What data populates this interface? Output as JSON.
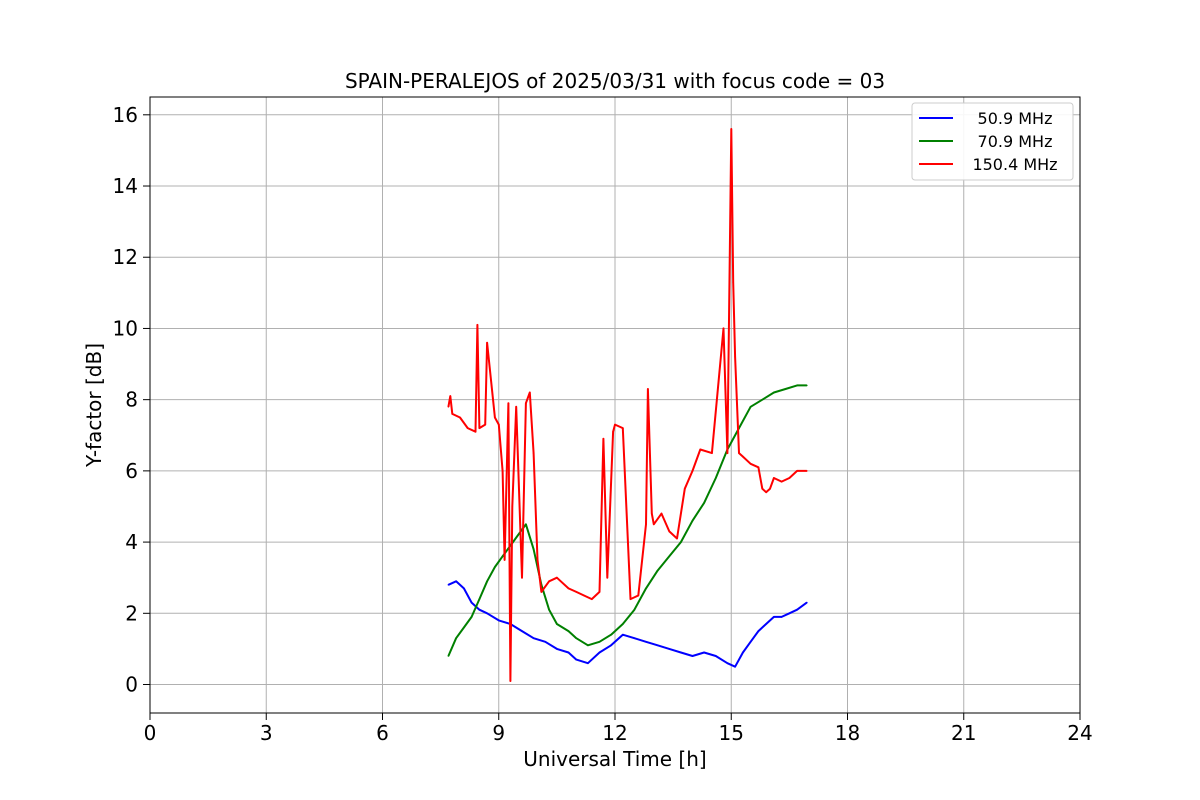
{
  "chart_data": {
    "type": "line",
    "title": "SPAIN-PERALEJOS of 2025/03/31 with focus code = 03",
    "xlabel": "Universal Time [h]",
    "ylabel": "Y-factor [dB]",
    "xlim": [
      0,
      24
    ],
    "ylim": [
      -0.8,
      16.5
    ],
    "xticks": [
      0,
      3,
      6,
      9,
      12,
      15,
      18,
      21,
      24
    ],
    "yticks": [
      0,
      2,
      4,
      6,
      8,
      10,
      12,
      14,
      16
    ],
    "grid": true,
    "legend_position": "top-right",
    "series": [
      {
        "name": "50.9 MHz",
        "color": "#0000ff",
        "x": [
          7.7,
          7.9,
          8.1,
          8.3,
          8.5,
          8.7,
          9.0,
          9.3,
          9.6,
          9.9,
          10.2,
          10.5,
          10.8,
          11.0,
          11.3,
          11.6,
          11.9,
          12.2,
          12.5,
          12.8,
          13.1,
          13.4,
          13.7,
          14.0,
          14.3,
          14.6,
          14.9,
          15.1,
          15.3,
          15.5,
          15.7,
          15.9,
          16.1,
          16.3,
          16.5,
          16.7,
          16.95
        ],
        "y": [
          2.8,
          2.9,
          2.7,
          2.3,
          2.1,
          2.0,
          1.8,
          1.7,
          1.5,
          1.3,
          1.2,
          1.0,
          0.9,
          0.7,
          0.6,
          0.9,
          1.1,
          1.4,
          1.3,
          1.2,
          1.1,
          1.0,
          0.9,
          0.8,
          0.9,
          0.8,
          0.6,
          0.5,
          0.9,
          1.2,
          1.5,
          1.7,
          1.9,
          1.9,
          2.0,
          2.1,
          2.3
        ]
      },
      {
        "name": "70.9 MHz",
        "color": "#008000",
        "x": [
          7.7,
          7.9,
          8.1,
          8.3,
          8.5,
          8.7,
          8.9,
          9.1,
          9.3,
          9.5,
          9.7,
          9.9,
          10.1,
          10.3,
          10.5,
          10.8,
          11.0,
          11.3,
          11.6,
          11.9,
          12.2,
          12.5,
          12.8,
          13.1,
          13.4,
          13.7,
          14.0,
          14.3,
          14.6,
          14.9,
          15.2,
          15.5,
          15.8,
          16.1,
          16.4,
          16.7,
          16.95
        ],
        "y": [
          0.8,
          1.3,
          1.6,
          1.9,
          2.4,
          2.9,
          3.3,
          3.6,
          3.9,
          4.2,
          4.5,
          3.8,
          2.8,
          2.1,
          1.7,
          1.5,
          1.3,
          1.1,
          1.2,
          1.4,
          1.7,
          2.1,
          2.7,
          3.2,
          3.6,
          4.0,
          4.6,
          5.1,
          5.8,
          6.6,
          7.2,
          7.8,
          8.0,
          8.2,
          8.3,
          8.4,
          8.4
        ]
      },
      {
        "name": "150.4 MHz",
        "color": "#ff0000",
        "x": [
          7.7,
          7.75,
          7.8,
          8.0,
          8.2,
          8.4,
          8.45,
          8.5,
          8.65,
          8.7,
          8.9,
          9.0,
          9.1,
          9.15,
          9.25,
          9.3,
          9.35,
          9.45,
          9.6,
          9.7,
          9.8,
          9.9,
          10.0,
          10.1,
          10.3,
          10.5,
          10.6,
          10.8,
          11.0,
          11.2,
          11.4,
          11.6,
          11.7,
          11.8,
          11.95,
          12.0,
          12.2,
          12.4,
          12.6,
          12.8,
          12.85,
          12.95,
          13.0,
          13.2,
          13.4,
          13.6,
          13.8,
          14.0,
          14.2,
          14.5,
          14.8,
          14.9,
          15.0,
          15.05,
          15.1,
          15.2,
          15.3,
          15.5,
          15.7,
          15.8,
          15.9,
          16.0,
          16.1,
          16.3,
          16.5,
          16.7,
          16.95
        ],
        "y": [
          7.8,
          8.1,
          7.6,
          7.5,
          7.2,
          7.1,
          10.1,
          7.2,
          7.3,
          9.6,
          7.5,
          7.3,
          6.0,
          3.5,
          7.9,
          0.1,
          5.0,
          7.8,
          3.0,
          7.9,
          8.2,
          6.5,
          3.5,
          2.6,
          2.9,
          3.0,
          2.9,
          2.7,
          2.6,
          2.5,
          2.4,
          2.6,
          6.9,
          3.0,
          7.1,
          7.3,
          7.2,
          2.4,
          2.5,
          4.5,
          8.3,
          4.8,
          4.5,
          4.8,
          4.3,
          4.1,
          5.5,
          6.0,
          6.6,
          6.5,
          10.0,
          6.5,
          15.6,
          11.3,
          9.2,
          6.5,
          6.4,
          6.2,
          6.1,
          5.5,
          5.4,
          5.5,
          5.8,
          5.7,
          5.8,
          6.0,
          6.0
        ]
      }
    ]
  }
}
